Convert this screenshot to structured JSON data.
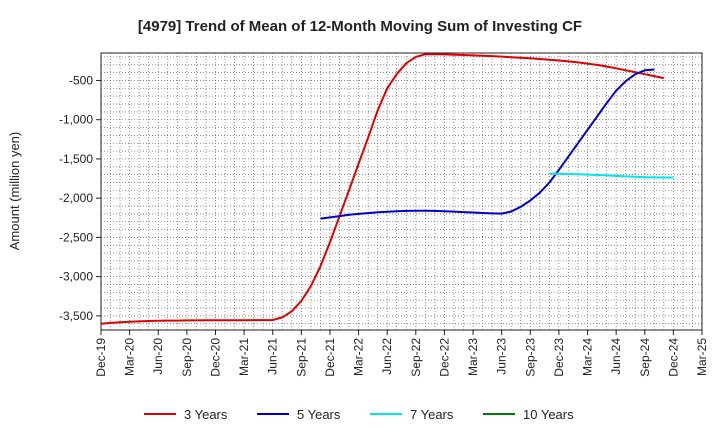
{
  "chart_data": {
    "type": "line",
    "title": "[4979]  Trend of Mean of 12-Month Moving Sum of Investing CF",
    "xlabel": "",
    "ylabel": "Amount (million yen)",
    "x_tick_labels": [
      "Dec-19",
      "Mar-20",
      "Jun-20",
      "Sep-20",
      "Dec-20",
      "Mar-21",
      "Jun-21",
      "Sep-21",
      "Dec-21",
      "Mar-22",
      "Jun-22",
      "Sep-22",
      "Dec-22",
      "Mar-23",
      "Jun-23",
      "Sep-23",
      "Dec-23",
      "Mar-24",
      "Jun-24",
      "Sep-24",
      "Dec-24",
      "Mar-25"
    ],
    "y_ticks": [
      -500,
      -1000,
      -1500,
      -2000,
      -2500,
      -3000,
      -3500
    ],
    "y_tick_labels": [
      "-500",
      "-1,000",
      "-1,500",
      "-2,000",
      "-2,500",
      "-3,000",
      "-3,500"
    ],
    "ylim": [
      -3680,
      -150
    ],
    "grid": true,
    "legend_position": "bottom",
    "series": [
      {
        "name": "3 Years",
        "color": "#e00000",
        "x_start": "Dec-19",
        "values": [
          -3600,
          -3590,
          -3580,
          -3575,
          -3570,
          -3565,
          -3562,
          -3560,
          -3560,
          -3558,
          -3558,
          -3557,
          -3557,
          -3556,
          -3555,
          -3555,
          -3554,
          -3554,
          -3553,
          -3520,
          -3440,
          -3310,
          -3120,
          -2870,
          -2560,
          -2230,
          -1900,
          -1560,
          -1230,
          -880,
          -600,
          -420,
          -280,
          -200,
          -165,
          -165,
          -168,
          -172,
          -175,
          -180,
          -185,
          -190,
          -196,
          -203,
          -210,
          -218,
          -226,
          -235,
          -245,
          -257,
          -270,
          -285,
          -302,
          -322,
          -345,
          -370,
          -395,
          -420,
          -445,
          -470
        ]
      },
      {
        "name": "5 Years",
        "color": "#0000cc",
        "x_start": "Nov-21",
        "values": [
          -2260,
          -2245,
          -2228,
          -2212,
          -2200,
          -2190,
          -2180,
          -2172,
          -2166,
          -2162,
          -2160,
          -2160,
          -2162,
          -2166,
          -2171,
          -2177,
          -2183,
          -2189,
          -2194,
          -2196,
          -2170,
          -2110,
          -2030,
          -1930,
          -1800,
          -1640,
          -1470,
          -1300,
          -1130,
          -960,
          -790,
          -630,
          -510,
          -420,
          -370,
          -360
        ]
      },
      {
        "name": "7 Years",
        "color": "#00e5ee",
        "x_start": "Nov-23",
        "values": [
          -1690,
          -1690,
          -1692,
          -1695,
          -1700,
          -1705,
          -1710,
          -1716,
          -1722,
          -1728,
          -1733,
          -1735,
          -1736,
          -1738
        ]
      },
      {
        "name": "10 Years",
        "color": "#008000",
        "x_start": "Dec-24",
        "values": []
      }
    ]
  }
}
